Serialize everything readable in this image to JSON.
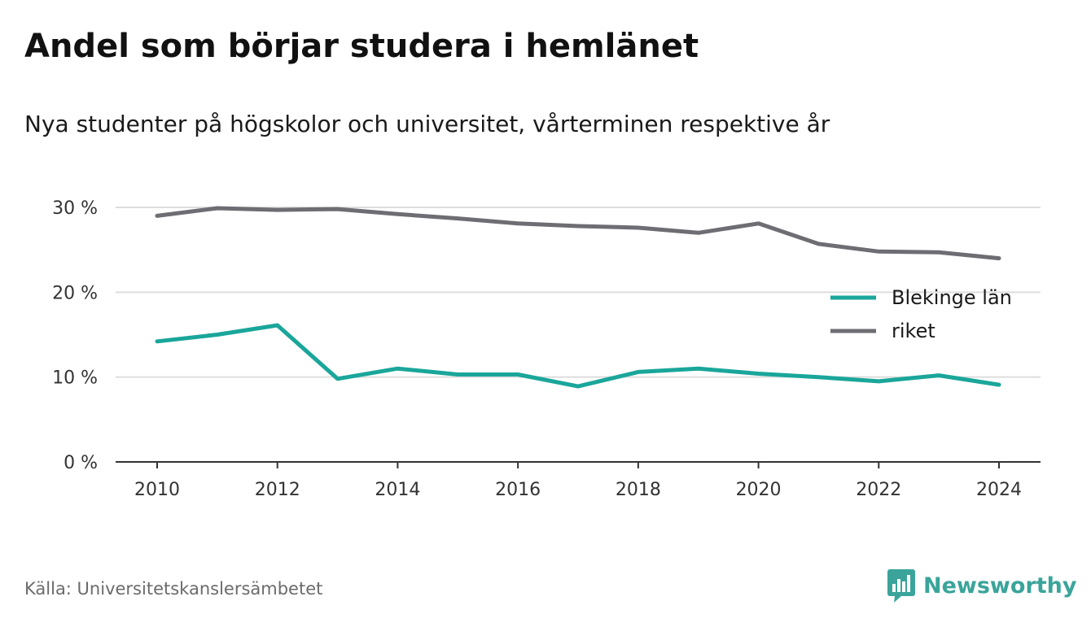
{
  "title": "Andel som börjar studera i hemlänet",
  "subtitle": "Nya studenter på högskolor och universitet, vårterminen respektive år",
  "source": "Källa: Universitetskanslersämbetet",
  "brand": {
    "name": "Newsworthy",
    "icon": "newsworthy-logo-icon",
    "color": "#3aa49a"
  },
  "chart_data": {
    "type": "line",
    "x": [
      2010,
      2011,
      2012,
      2013,
      2014,
      2015,
      2016,
      2017,
      2018,
      2019,
      2020,
      2021,
      2022,
      2023,
      2024
    ],
    "x_tick_labels": [
      "2010",
      "2012",
      "2014",
      "2016",
      "2018",
      "2020",
      "2022",
      "2024"
    ],
    "y_tick_labels": [
      "0 %",
      "10 %",
      "20 %",
      "30 %"
    ],
    "ylim": [
      0,
      30
    ],
    "grid": true,
    "legend_position": "right",
    "series": [
      {
        "name": "Blekinge län",
        "color": "#1aa69a",
        "values": [
          14.2,
          15.0,
          16.1,
          9.8,
          11.0,
          10.3,
          10.3,
          8.9,
          10.6,
          11.0,
          10.4,
          10.0,
          9.5,
          10.2,
          9.1
        ]
      },
      {
        "name": "riket",
        "color": "#6e6d73",
        "values": [
          29.0,
          29.9,
          29.7,
          29.8,
          29.2,
          28.7,
          28.1,
          27.8,
          27.6,
          27.0,
          28.1,
          25.7,
          24.8,
          24.7,
          24.0
        ]
      }
    ]
  }
}
